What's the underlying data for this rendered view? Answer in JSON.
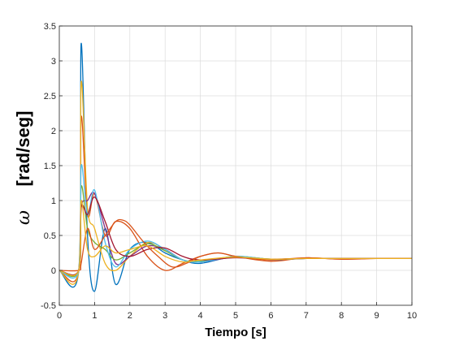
{
  "chart_data": {
    "type": "line",
    "title": "",
    "xlabel": "Tiempo [s]",
    "ylabel_symbol": "ω",
    "ylabel": "[rad/seg]",
    "xlim": [
      0,
      10
    ],
    "ylim": [
      -0.5,
      3.5
    ],
    "xticks": [
      "0",
      "1",
      "2",
      "3",
      "4",
      "5",
      "6",
      "7",
      "8",
      "9",
      "10"
    ],
    "yticks": [
      "-0.5",
      "0",
      "0.5",
      "1",
      "1.5",
      "2",
      "2.5",
      "3",
      "3.5"
    ],
    "grid": true,
    "legend": "none",
    "series": [
      {
        "color": "#0072BD",
        "x": [
          0,
          0.55,
          0.62,
          0.8,
          1.0,
          1.3,
          1.6,
          2.0,
          2.5,
          3.0,
          3.5,
          4.0,
          5.0,
          6.0,
          7.0,
          8.0,
          9.0,
          10.0
        ],
        "values": [
          0,
          0,
          3.25,
          0.5,
          -0.3,
          0.6,
          -0.2,
          0.3,
          0.4,
          0.25,
          0.15,
          0.1,
          0.2,
          0.15,
          0.17,
          0.17,
          0.17,
          0.17
        ]
      },
      {
        "color": "#D95319",
        "x": [
          0,
          0.55,
          0.62,
          0.8,
          1.0,
          1.3,
          1.6,
          2.0,
          2.5,
          3.0,
          3.5,
          4.0,
          4.5,
          5.0,
          6.0,
          7.0,
          8.0,
          9.0,
          10.0
        ],
        "values": [
          0,
          0,
          2.2,
          0.8,
          1.1,
          0.5,
          0.7,
          0.6,
          0.2,
          0.0,
          0.1,
          0.2,
          0.25,
          0.2,
          0.13,
          0.18,
          0.16,
          0.17,
          0.17
        ]
      },
      {
        "color": "#EDB120",
        "x": [
          0,
          0.55,
          0.62,
          0.8,
          1.0,
          1.3,
          1.6,
          2.0,
          2.5,
          3.0,
          3.5,
          4.0,
          5.0,
          6.0,
          7.0,
          8.0,
          9.0,
          10.0
        ],
        "values": [
          0,
          0,
          2.7,
          0.9,
          0.6,
          0.1,
          0.0,
          0.2,
          0.4,
          0.3,
          0.15,
          0.12,
          0.2,
          0.16,
          0.17,
          0.17,
          0.17,
          0.17
        ]
      },
      {
        "color": "#7E2F8E",
        "x": [
          0,
          0.55,
          0.62,
          0.8,
          1.0,
          1.3,
          1.6,
          2.0,
          2.5,
          3.0,
          3.5,
          4.0,
          5.0,
          6.0,
          7.0,
          8.0,
          9.0,
          10.0
        ],
        "values": [
          0,
          0,
          0.9,
          1.0,
          1.1,
          0.6,
          0.1,
          0.2,
          0.35,
          0.3,
          0.15,
          0.12,
          0.19,
          0.16,
          0.17,
          0.17,
          0.17,
          0.17
        ]
      },
      {
        "color": "#77AC30",
        "x": [
          0,
          0.55,
          0.62,
          0.8,
          1.0,
          1.3,
          1.6,
          2.0,
          2.5,
          3.0,
          3.5,
          4.0,
          5.0,
          6.0,
          7.0,
          8.0,
          9.0,
          10.0
        ],
        "values": [
          0,
          0,
          1.2,
          0.6,
          0.4,
          0.3,
          0.15,
          0.25,
          0.38,
          0.28,
          0.15,
          0.13,
          0.2,
          0.16,
          0.17,
          0.17,
          0.17,
          0.17
        ]
      },
      {
        "color": "#4DBEEE",
        "x": [
          0,
          0.55,
          0.62,
          0.8,
          1.0,
          1.3,
          1.6,
          2.0,
          2.5,
          3.0,
          3.5,
          4.0,
          5.0,
          6.0,
          7.0,
          8.0,
          9.0,
          10.0
        ],
        "values": [
          0,
          0,
          1.5,
          0.8,
          1.15,
          0.4,
          0.05,
          0.3,
          0.42,
          0.3,
          0.15,
          0.12,
          0.2,
          0.16,
          0.17,
          0.17,
          0.17,
          0.17
        ]
      },
      {
        "color": "#A2142F",
        "x": [
          0,
          0.55,
          0.62,
          0.8,
          1.0,
          1.3,
          1.6,
          2.0,
          2.5,
          3.0,
          3.5,
          4.0,
          5.0,
          6.0,
          7.0,
          8.0,
          9.0,
          10.0
        ],
        "values": [
          0,
          0,
          0.9,
          0.8,
          1.05,
          0.7,
          0.3,
          0.2,
          0.3,
          0.32,
          0.2,
          0.15,
          0.18,
          0.16,
          0.17,
          0.17,
          0.17,
          0.17
        ]
      },
      {
        "color": "#D95319",
        "x": [
          0,
          0.55,
          0.62,
          0.8,
          1.0,
          1.3,
          1.6,
          1.8,
          2.0,
          2.4,
          2.8,
          3.2,
          3.6,
          4.0,
          4.5,
          5.0,
          5.5,
          6.0,
          7.0,
          8.0,
          9.0,
          10.0
        ],
        "values": [
          0,
          0,
          0.1,
          0.6,
          0.3,
          0.5,
          0.7,
          0.72,
          0.65,
          0.4,
          0.2,
          0.05,
          0.1,
          0.2,
          0.25,
          0.2,
          0.17,
          0.15,
          0.18,
          0.16,
          0.17,
          0.17
        ]
      },
      {
        "color": "#EDB120",
        "x": [
          0,
          0.55,
          0.62,
          0.8,
          1.0,
          1.3,
          1.6,
          2.0,
          2.5,
          3.0,
          3.5,
          4.0,
          5.0,
          6.0,
          7.0,
          8.0,
          9.0,
          10.0
        ],
        "values": [
          0,
          0,
          1.0,
          0.3,
          0.2,
          0.35,
          0.25,
          0.3,
          0.35,
          0.2,
          0.12,
          0.15,
          0.19,
          0.16,
          0.17,
          0.17,
          0.17,
          0.17
        ]
      }
    ]
  }
}
